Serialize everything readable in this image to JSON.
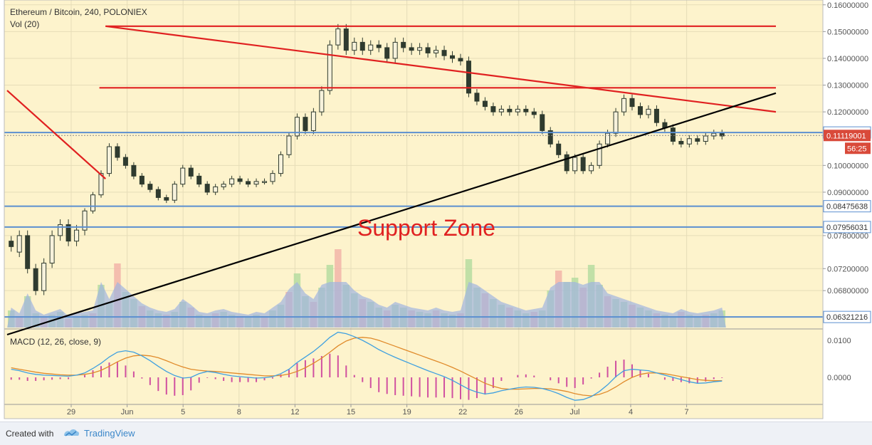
{
  "header": {
    "title": "Ethereum / Bitcoin, 240, POLONIEX",
    "volume_label": "Vol (20)",
    "macd_label": "MACD (12, 26, close, 9)"
  },
  "footer": {
    "created_with": "Created with",
    "brand": "TradingView"
  },
  "colors": {
    "background": "#fdf3cc",
    "candle": "#2f3b2f",
    "trend_red": "#e02020",
    "trend_black": "#000000",
    "support_blue": "#5b8fd0",
    "macd_line": "#3fa0e0",
    "signal_line": "#e08a2a",
    "histogram": "#d050a0",
    "current_price_bg": "#d94a3a"
  },
  "chart_data": {
    "type": "candlestick",
    "price_axis": {
      "ticks": [
        "0.16000000",
        "0.15000000",
        "0.14000000",
        "0.13000000",
        "0.12000000",
        "0.10000000",
        "0.09000000",
        "0.07800000",
        "0.07200000",
        "0.06800000"
      ],
      "tick_values": [
        0.16,
        0.15,
        0.14,
        0.13,
        0.12,
        0.1,
        0.09,
        0.078,
        0.072,
        0.068
      ]
    },
    "macd_axis": {
      "ticks": [
        "0.0100",
        "0.0000"
      ],
      "tick_values": [
        0.01,
        0.0
      ]
    },
    "x_ticks": [
      "29",
      "Jun",
      "5",
      "8",
      "12",
      "15",
      "19",
      "22",
      "26",
      "Jul",
      "4",
      "7"
    ],
    "support_levels": [
      {
        "label": "0.11229536",
        "value": 0.11229536
      },
      {
        "label": "0.08475638",
        "value": 0.08475638
      },
      {
        "label": "0.07956031",
        "value": 0.07956031
      },
      {
        "label": "0.06321216",
        "value": 0.06321216
      }
    ],
    "current_price": {
      "label": "0.11119001",
      "value": 0.11119001,
      "countdown": "56:25"
    },
    "annotation": "Support Zone",
    "price_path": [
      [
        0.077,
        0.076
      ],
      [
        0.075,
        0.078
      ],
      [
        0.078,
        0.072
      ],
      [
        0.072,
        0.068
      ],
      [
        0.068,
        0.073
      ],
      [
        0.073,
        0.078
      ],
      [
        0.078,
        0.08
      ],
      [
        0.08,
        0.077
      ],
      [
        0.077,
        0.079
      ],
      [
        0.079,
        0.083
      ],
      [
        0.083,
        0.089
      ],
      [
        0.089,
        0.097
      ],
      [
        0.097,
        0.107
      ],
      [
        0.107,
        0.103
      ],
      [
        0.103,
        0.1
      ],
      [
        0.1,
        0.096
      ],
      [
        0.096,
        0.093
      ],
      [
        0.093,
        0.091
      ],
      [
        0.091,
        0.088
      ],
      [
        0.088,
        0.087
      ],
      [
        0.087,
        0.093
      ],
      [
        0.093,
        0.099
      ],
      [
        0.099,
        0.096
      ],
      [
        0.096,
        0.093
      ],
      [
        0.093,
        0.09
      ],
      [
        0.09,
        0.092
      ],
      [
        0.092,
        0.093
      ],
      [
        0.093,
        0.095
      ],
      [
        0.095,
        0.094
      ],
      [
        0.094,
        0.093
      ],
      [
        0.093,
        0.094
      ],
      [
        0.094,
        0.094
      ],
      [
        0.094,
        0.097
      ],
      [
        0.097,
        0.104
      ],
      [
        0.104,
        0.111
      ],
      [
        0.111,
        0.118
      ],
      [
        0.118,
        0.113
      ],
      [
        0.113,
        0.12
      ],
      [
        0.12,
        0.128
      ],
      [
        0.128,
        0.145
      ],
      [
        0.145,
        0.151
      ],
      [
        0.151,
        0.143
      ],
      [
        0.143,
        0.146
      ],
      [
        0.146,
        0.143
      ],
      [
        0.143,
        0.145
      ],
      [
        0.145,
        0.144
      ],
      [
        0.144,
        0.14
      ],
      [
        0.14,
        0.146
      ],
      [
        0.146,
        0.144
      ],
      [
        0.144,
        0.143
      ],
      [
        0.143,
        0.144
      ],
      [
        0.144,
        0.142
      ],
      [
        0.142,
        0.143
      ],
      [
        0.143,
        0.141
      ],
      [
        0.141,
        0.14
      ],
      [
        0.14,
        0.139
      ],
      [
        0.139,
        0.127
      ],
      [
        0.127,
        0.124
      ],
      [
        0.124,
        0.122
      ],
      [
        0.122,
        0.12
      ],
      [
        0.12,
        0.121
      ],
      [
        0.121,
        0.12
      ],
      [
        0.12,
        0.121
      ],
      [
        0.121,
        0.12
      ],
      [
        0.12,
        0.119
      ],
      [
        0.119,
        0.113
      ],
      [
        0.113,
        0.108
      ],
      [
        0.108,
        0.104
      ],
      [
        0.104,
        0.098
      ],
      [
        0.098,
        0.103
      ],
      [
        0.103,
        0.098
      ],
      [
        0.098,
        0.1
      ],
      [
        0.1,
        0.108
      ],
      [
        0.108,
        0.112
      ],
      [
        0.112,
        0.12
      ],
      [
        0.12,
        0.125
      ],
      [
        0.125,
        0.122
      ],
      [
        0.122,
        0.119
      ],
      [
        0.119,
        0.121
      ],
      [
        0.121,
        0.116
      ],
      [
        0.116,
        0.114
      ],
      [
        0.114,
        0.109
      ],
      [
        0.109,
        0.108
      ],
      [
        0.108,
        0.11
      ],
      [
        0.11,
        0.109
      ],
      [
        0.109,
        0.111
      ],
      [
        0.111,
        0.112
      ],
      [
        0.112,
        0.111
      ]
    ],
    "volume_path": [
      12,
      8,
      22,
      10,
      7,
      9,
      11,
      6,
      8,
      9,
      10,
      30,
      18,
      45,
      25,
      20,
      15,
      12,
      10,
      9,
      11,
      18,
      14,
      9,
      8,
      10,
      11,
      9,
      8,
      7,
      9,
      8,
      12,
      16,
      25,
      38,
      22,
      18,
      28,
      44,
      55,
      30,
      24,
      20,
      18,
      14,
      12,
      16,
      14,
      12,
      11,
      10,
      12,
      10,
      9,
      10,
      48,
      28,
      24,
      20,
      16,
      14,
      12,
      10,
      11,
      12,
      26,
      40,
      32,
      35,
      28,
      44,
      30,
      22,
      20,
      18,
      16,
      14,
      12,
      10,
      9,
      8,
      11,
      9,
      8,
      9,
      10,
      12
    ],
    "macd_path": [
      0.0022,
      0.0018,
      0.0012,
      0.0008,
      0.0006,
      0.0005,
      0.0004,
      0.0003,
      0.0006,
      0.0012,
      0.0024,
      0.0038,
      0.0055,
      0.0068,
      0.0072,
      0.0068,
      0.0058,
      0.0045,
      0.003,
      0.0016,
      0.0005,
      -0.0002,
      0.0,
      0.001,
      0.0016,
      0.0013,
      0.0008,
      0.0004,
      0.0002,
      0.0,
      -0.0002,
      -0.0001,
      0.0002,
      0.001,
      0.0022,
      0.004,
      0.0055,
      0.007,
      0.0088,
      0.0108,
      0.0122,
      0.0118,
      0.011,
      0.01,
      0.0088,
      0.0075,
      0.0064,
      0.0054,
      0.0045,
      0.0036,
      0.0027,
      0.0018,
      0.001,
      0.0002,
      -0.0008,
      -0.002,
      -0.0032,
      -0.004,
      -0.0045,
      -0.0042,
      -0.0036,
      -0.0032,
      -0.0028,
      -0.0026,
      -0.0027,
      -0.003,
      -0.0036,
      -0.0044,
      -0.0054,
      -0.0062,
      -0.006,
      -0.0052,
      -0.0038,
      -0.002,
      0.0002,
      0.0018,
      0.0022,
      0.002,
      0.0018,
      0.0012,
      0.0006,
      0.0,
      -0.0006,
      -0.0012,
      -0.0016,
      -0.0015,
      -0.0012,
      -0.001
    ],
    "signal_path": [
      0.0026,
      0.0022,
      0.0018,
      0.0014,
      0.0011,
      0.0009,
      0.0007,
      0.0006,
      0.0006,
      0.0008,
      0.0012,
      0.0019,
      0.003,
      0.0042,
      0.0052,
      0.0058,
      0.006,
      0.0058,
      0.0053,
      0.0045,
      0.0036,
      0.0028,
      0.0022,
      0.0019,
      0.0017,
      0.0016,
      0.0014,
      0.0012,
      0.001,
      0.0008,
      0.0006,
      0.0004,
      0.0004,
      0.0005,
      0.0009,
      0.0016,
      0.0026,
      0.0038,
      0.0052,
      0.0068,
      0.0085,
      0.0098,
      0.0106,
      0.0108,
      0.0106,
      0.01,
      0.0092,
      0.0084,
      0.0076,
      0.0068,
      0.006,
      0.0052,
      0.0044,
      0.0036,
      0.0027,
      0.0017,
      0.0006,
      -0.0005,
      -0.0016,
      -0.0024,
      -0.003,
      -0.0032,
      -0.0032,
      -0.0031,
      -0.003,
      -0.003,
      -0.0031,
      -0.0034,
      -0.0038,
      -0.0044,
      -0.0048,
      -0.005,
      -0.0046,
      -0.0038,
      -0.0026,
      -0.0012,
      0.0,
      0.0008,
      0.0012,
      0.0012,
      0.001,
      0.0006,
      0.0002,
      -0.0002,
      -0.0006,
      -0.0008,
      -0.0009,
      -0.0009
    ],
    "trend_lines": [
      {
        "color": "red",
        "points": [
          [
            0.0,
            0.128
          ],
          [
            0.128,
            0.095
          ]
        ]
      },
      {
        "color": "red",
        "points": [
          [
            0.128,
            0.152
          ],
          [
            1.0,
            0.152
          ]
        ]
      },
      {
        "color": "red",
        "points": [
          [
            0.128,
            0.152
          ],
          [
            1.0,
            0.12
          ]
        ]
      },
      {
        "color": "red",
        "points": [
          [
            0.12,
            0.129
          ],
          [
            1.0,
            0.129
          ]
        ]
      },
      {
        "color": "black",
        "points": [
          [
            0.0,
            0.06
          ],
          [
            1.0,
            0.127
          ]
        ]
      }
    ]
  }
}
